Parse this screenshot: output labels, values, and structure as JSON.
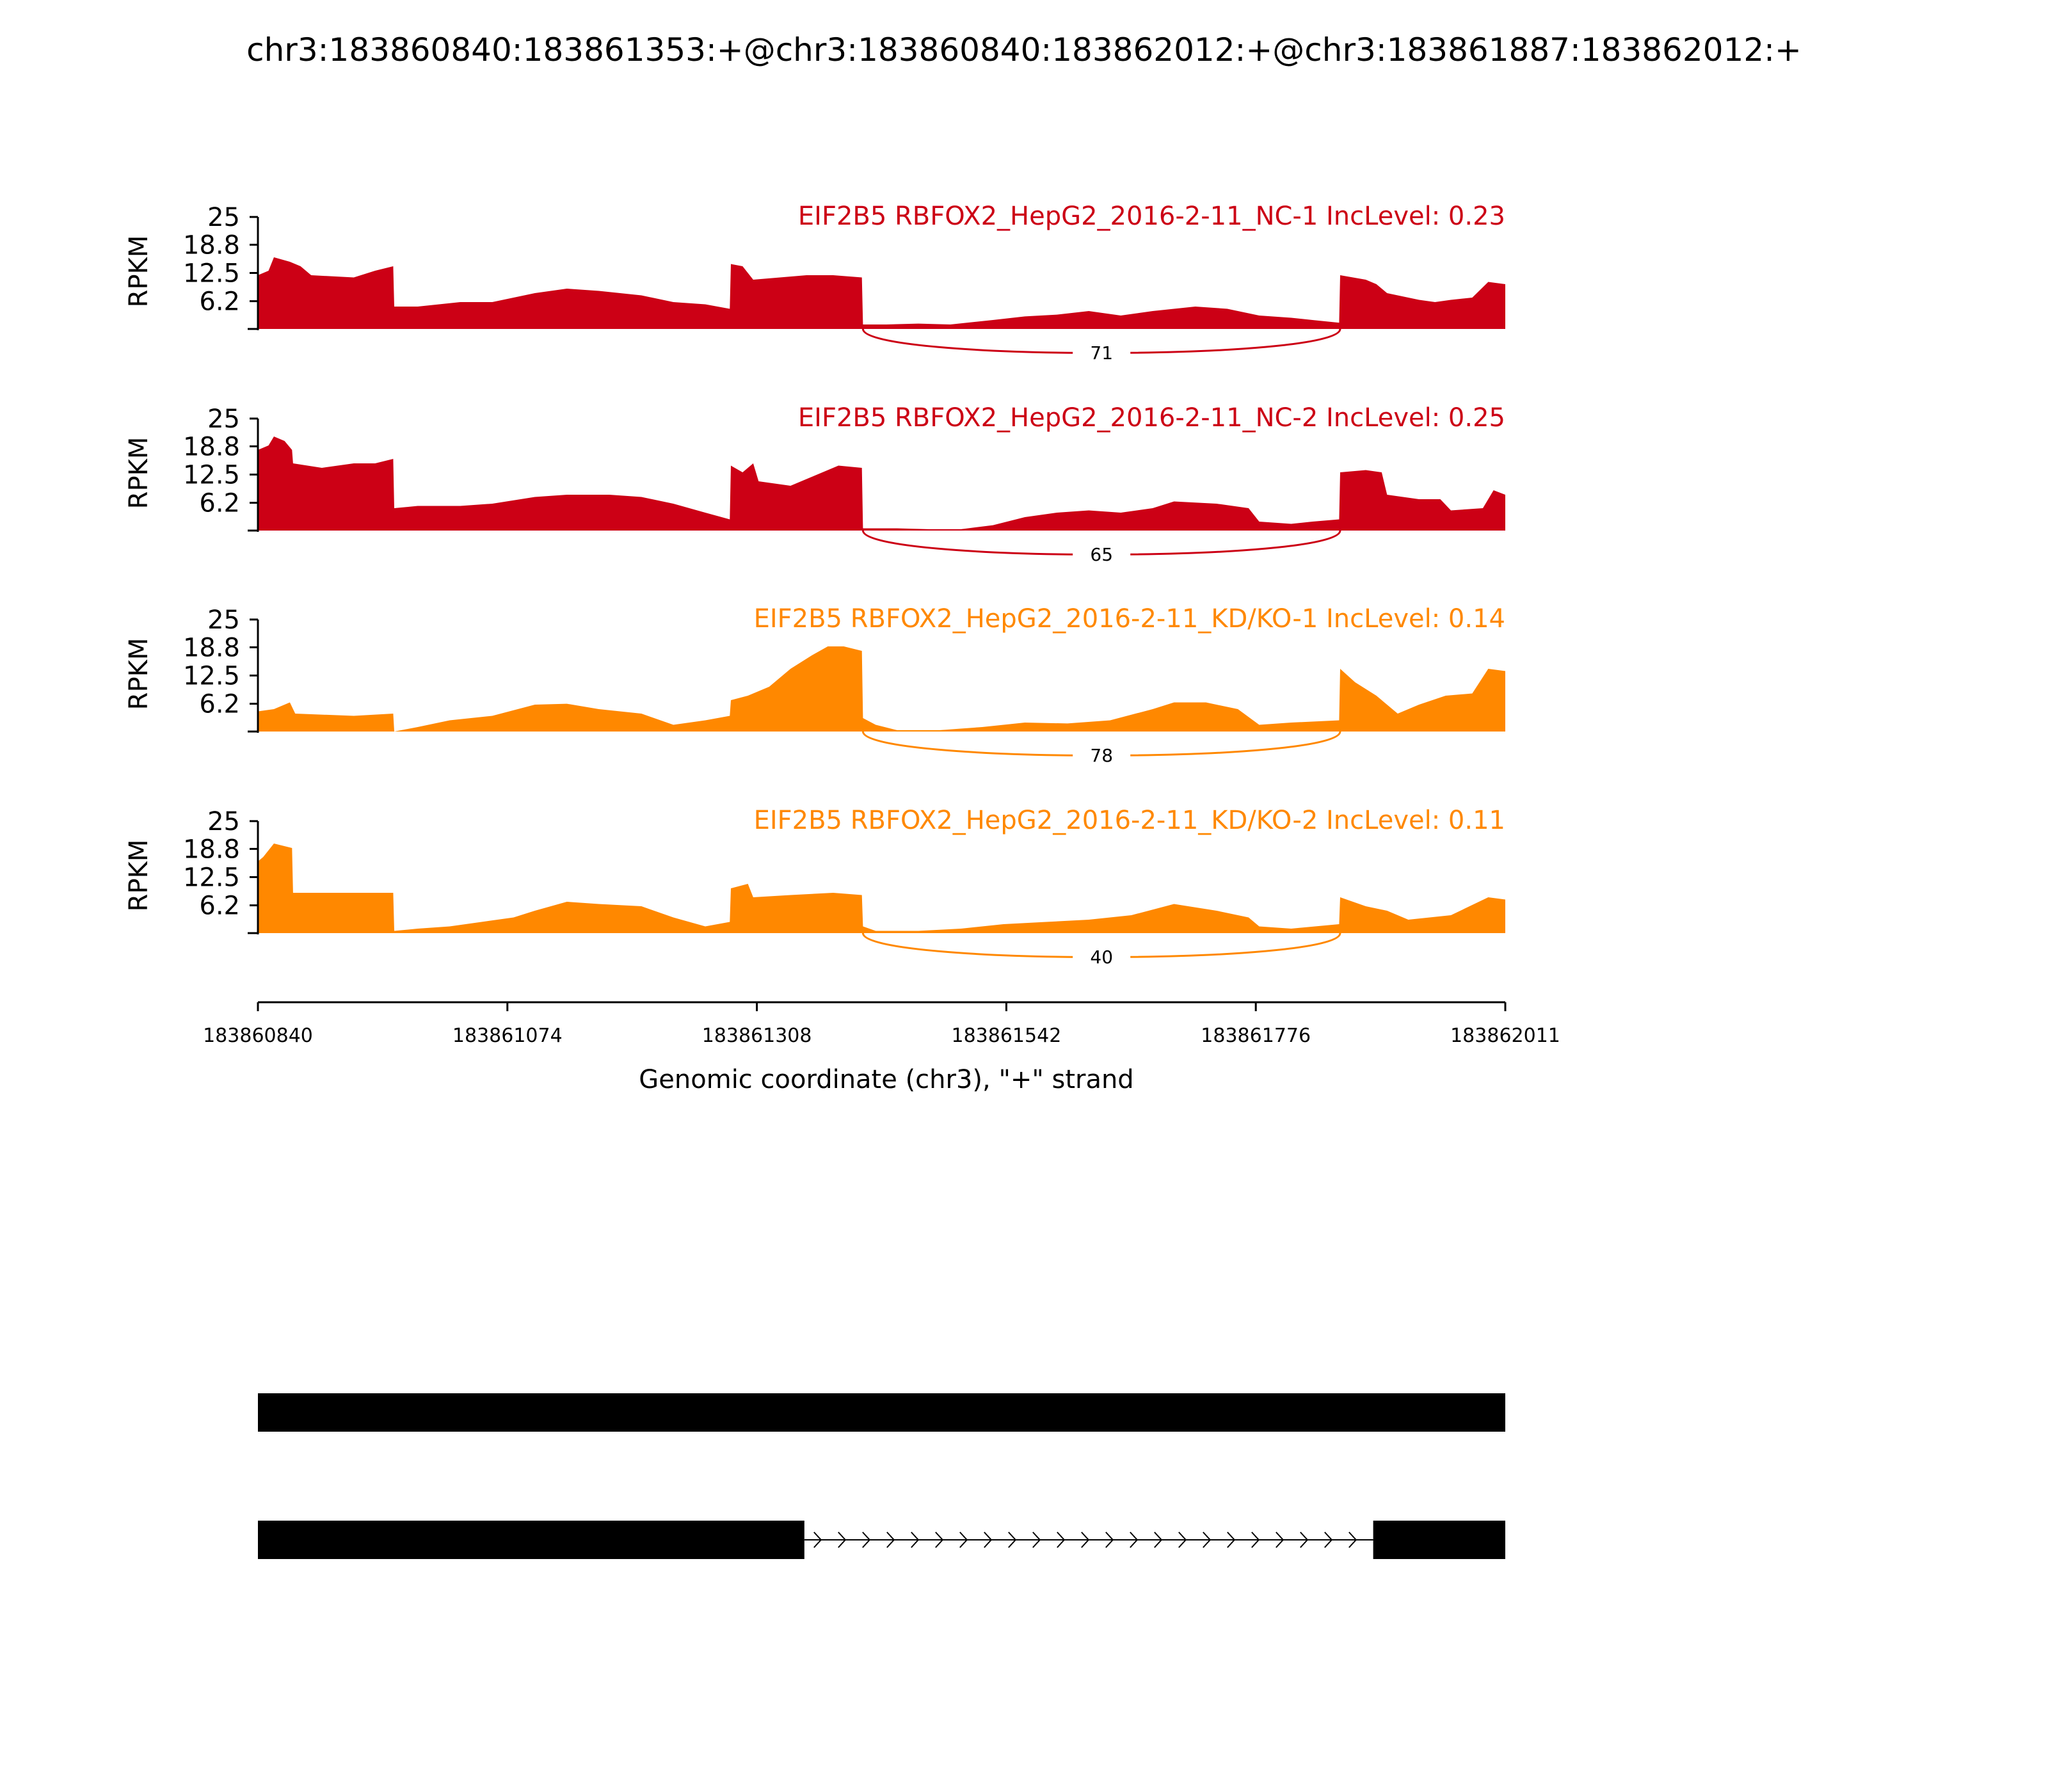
{
  "title": "chr3:183860840:183861353:+@chr3:183860840:183862012:+@chr3:183861887:183862012:+",
  "colors": {
    "nc": "#cc0015",
    "kd": "#ff8800",
    "axis": "#000000",
    "gene": "#000000"
  },
  "chart_data": {
    "type": "area",
    "x_axis": {
      "label": "Genomic coordinate (chr3), \"+\" strand",
      "ticks": [
        "183860840",
        "183861074",
        "183861308",
        "183861542",
        "183861776",
        "183862011"
      ],
      "range": [
        183860840,
        183862011
      ]
    },
    "y_axis": {
      "label": "RPKM",
      "ticks": [
        "25",
        "18.8",
        "12.5",
        "6.2"
      ],
      "range": [
        0,
        25
      ]
    },
    "grid": false,
    "tracks": [
      {
        "label": "EIF2B5 RBFOX2_HepG2_2016-2-11_NC-1 IncLevel: 0.23",
        "group": "nc",
        "profile": [
          [
            183860840,
            12
          ],
          [
            183860850,
            13
          ],
          [
            183860855,
            16
          ],
          [
            183860870,
            15
          ],
          [
            183860880,
            14
          ],
          [
            183860890,
            12
          ],
          [
            183860930,
            11.5
          ],
          [
            183860950,
            13
          ],
          [
            183860967,
            14
          ],
          [
            183860968,
            5
          ],
          [
            183860990,
            5
          ],
          [
            183861030,
            6
          ],
          [
            183861060,
            6
          ],
          [
            183861100,
            8
          ],
          [
            183861130,
            9
          ],
          [
            183861160,
            8.5
          ],
          [
            183861200,
            7.5
          ],
          [
            183861230,
            6
          ],
          [
            183861260,
            5.5
          ],
          [
            183861283,
            4.5
          ],
          [
            183861284,
            14.5
          ],
          [
            183861295,
            14
          ],
          [
            183861305,
            11
          ],
          [
            183861330,
            11.5
          ],
          [
            183861355,
            12
          ],
          [
            183861380,
            12
          ],
          [
            183861407,
            11.5
          ],
          [
            183861408,
            1
          ],
          [
            183861430,
            1
          ],
          [
            183861460,
            1.2
          ],
          [
            183861490,
            1
          ],
          [
            183861530,
            2
          ],
          [
            183861560,
            2.8
          ],
          [
            183861590,
            3.2
          ],
          [
            183861620,
            4
          ],
          [
            183861650,
            3
          ],
          [
            183861680,
            4
          ],
          [
            183861720,
            5
          ],
          [
            183861750,
            4.5
          ],
          [
            183861780,
            3
          ],
          [
            183861810,
            2.5
          ],
          [
            183861830,
            2
          ],
          [
            183861855,
            1.4
          ],
          [
            183861856,
            12
          ],
          [
            183861880,
            11
          ],
          [
            183861890,
            10
          ],
          [
            183861900,
            8
          ],
          [
            183861930,
            6.5
          ],
          [
            183861945,
            6
          ],
          [
            183861960,
            6.5
          ],
          [
            183861980,
            7
          ],
          [
            183861995,
            10.5
          ],
          [
            183862011,
            10
          ]
        ],
        "junction": {
          "start": 183861408,
          "end": 183861856,
          "count": "71"
        }
      },
      {
        "label": "EIF2B5 RBFOX2_HepG2_2016-2-11_NC-2 IncLevel: 0.25",
        "group": "nc",
        "profile": [
          [
            183860840,
            18
          ],
          [
            183860850,
            19
          ],
          [
            183860855,
            21
          ],
          [
            183860865,
            20
          ],
          [
            183860872,
            18
          ],
          [
            183860873,
            15
          ],
          [
            183860900,
            14
          ],
          [
            183860930,
            15
          ],
          [
            183860950,
            15
          ],
          [
            183860967,
            16
          ],
          [
            183860968,
            5
          ],
          [
            183860990,
            5.5
          ],
          [
            183861030,
            5.5
          ],
          [
            183861060,
            6
          ],
          [
            183861100,
            7.5
          ],
          [
            183861130,
            8
          ],
          [
            183861170,
            8
          ],
          [
            183861200,
            7.5
          ],
          [
            183861230,
            6
          ],
          [
            183861260,
            4
          ],
          [
            183861283,
            2.5
          ],
          [
            183861284,
            14.5
          ],
          [
            183861295,
            13
          ],
          [
            183861305,
            15
          ],
          [
            183861310,
            11
          ],
          [
            183861340,
            10
          ],
          [
            183861360,
            12
          ],
          [
            183861385,
            14.5
          ],
          [
            183861407,
            14
          ],
          [
            183861408,
            0.5
          ],
          [
            183861440,
            0.5
          ],
          [
            183861470,
            0.3
          ],
          [
            183861500,
            0.3
          ],
          [
            183861530,
            1.2
          ],
          [
            183861560,
            3
          ],
          [
            183861590,
            4
          ],
          [
            183861620,
            4.5
          ],
          [
            183861650,
            4
          ],
          [
            183861680,
            5
          ],
          [
            183861700,
            6.5
          ],
          [
            183861740,
            6
          ],
          [
            183861770,
            5
          ],
          [
            183861780,
            2
          ],
          [
            183861810,
            1.5
          ],
          [
            183861830,
            2
          ],
          [
            183861855,
            2.5
          ],
          [
            183861856,
            13
          ],
          [
            183861880,
            13.5
          ],
          [
            183861895,
            13
          ],
          [
            183861900,
            8
          ],
          [
            183861930,
            7
          ],
          [
            183861950,
            7
          ],
          [
            183861960,
            4.5
          ],
          [
            183861990,
            5
          ],
          [
            183862000,
            9
          ],
          [
            183862011,
            8
          ]
        ],
        "junction": {
          "start": 183861408,
          "end": 183861856,
          "count": "65"
        }
      },
      {
        "label": "EIF2B5 RBFOX2_HepG2_2016-2-11_KD/KO-1 IncLevel: 0.14",
        "group": "kd",
        "profile": [
          [
            183860840,
            4.5
          ],
          [
            183860855,
            5
          ],
          [
            183860870,
            6.5
          ],
          [
            183860875,
            4
          ],
          [
            183860930,
            3.5
          ],
          [
            183860967,
            4
          ],
          [
            183860968,
            0
          ],
          [
            183860990,
            1
          ],
          [
            183861020,
            2.5
          ],
          [
            183861060,
            3.5
          ],
          [
            183861100,
            6
          ],
          [
            183861130,
            6.2
          ],
          [
            183861160,
            5
          ],
          [
            183861200,
            4
          ],
          [
            183861230,
            1.5
          ],
          [
            183861260,
            2.5
          ],
          [
            183861283,
            3.5
          ],
          [
            183861284,
            7
          ],
          [
            183861300,
            8
          ],
          [
            183861320,
            10
          ],
          [
            183861340,
            14
          ],
          [
            183861360,
            17
          ],
          [
            183861375,
            19
          ],
          [
            183861390,
            19
          ],
          [
            183861407,
            18
          ],
          [
            183861408,
            3
          ],
          [
            183861420,
            1.5
          ],
          [
            183861440,
            0.3
          ],
          [
            183861480,
            0.3
          ],
          [
            183861520,
            1
          ],
          [
            183861560,
            2
          ],
          [
            183861600,
            1.8
          ],
          [
            183861640,
            2.5
          ],
          [
            183861680,
            5
          ],
          [
            183861700,
            6.5
          ],
          [
            183861730,
            6.5
          ],
          [
            183861760,
            5
          ],
          [
            183861780,
            1.5
          ],
          [
            183861810,
            2
          ],
          [
            183861855,
            2.5
          ],
          [
            183861856,
            14
          ],
          [
            183861870,
            11
          ],
          [
            183861890,
            8
          ],
          [
            183861910,
            4
          ],
          [
            183861930,
            6
          ],
          [
            183861955,
            8
          ],
          [
            183861980,
            8.5
          ],
          [
            183861995,
            14
          ],
          [
            183862011,
            13.5
          ]
        ],
        "junction": {
          "start": 183861408,
          "end": 183861856,
          "count": "78"
        }
      },
      {
        "label": "EIF2B5 RBFOX2_HepG2_2016-2-11_KD/KO-2 IncLevel: 0.11",
        "group": "kd",
        "profile": [
          [
            183860840,
            16
          ],
          [
            183860845,
            17
          ],
          [
            183860855,
            20
          ],
          [
            183860872,
            19
          ],
          [
            183860873,
            9
          ],
          [
            183860900,
            9
          ],
          [
            183860967,
            9
          ],
          [
            183860968,
            0.5
          ],
          [
            183860990,
            1
          ],
          [
            183861020,
            1.5
          ],
          [
            183861050,
            2.5
          ],
          [
            183861080,
            3.5
          ],
          [
            183861100,
            5
          ],
          [
            183861130,
            7
          ],
          [
            183861160,
            6.5
          ],
          [
            183861200,
            6
          ],
          [
            183861230,
            3.5
          ],
          [
            183861260,
            1.5
          ],
          [
            183861283,
            2.5
          ],
          [
            183861284,
            10
          ],
          [
            183861300,
            11
          ],
          [
            183861305,
            8
          ],
          [
            183861340,
            8.5
          ],
          [
            183861380,
            9
          ],
          [
            183861407,
            8.5
          ],
          [
            183861408,
            1.5
          ],
          [
            183861420,
            0.5
          ],
          [
            183861460,
            0.5
          ],
          [
            183861500,
            1
          ],
          [
            183861540,
            2
          ],
          [
            183861580,
            2.5
          ],
          [
            183861620,
            3
          ],
          [
            183861660,
            4
          ],
          [
            183861700,
            6.5
          ],
          [
            183861740,
            5
          ],
          [
            183861770,
            3.5
          ],
          [
            183861780,
            1.5
          ],
          [
            183861810,
            1
          ],
          [
            183861855,
            2
          ],
          [
            183861856,
            8
          ],
          [
            183861880,
            6
          ],
          [
            183861900,
            5
          ],
          [
            183861920,
            3
          ],
          [
            183861960,
            4
          ],
          [
            183861995,
            8
          ],
          [
            183862011,
            7.5
          ]
        ],
        "junction": {
          "start": 183861408,
          "end": 183861856,
          "count": "40"
        }
      }
    ],
    "gene_models": [
      {
        "exons": [
          [
            183860840,
            183862011
          ]
        ]
      },
      {
        "exons": [
          [
            183860840,
            183861353
          ],
          [
            183861887,
            183862011
          ]
        ]
      }
    ]
  }
}
